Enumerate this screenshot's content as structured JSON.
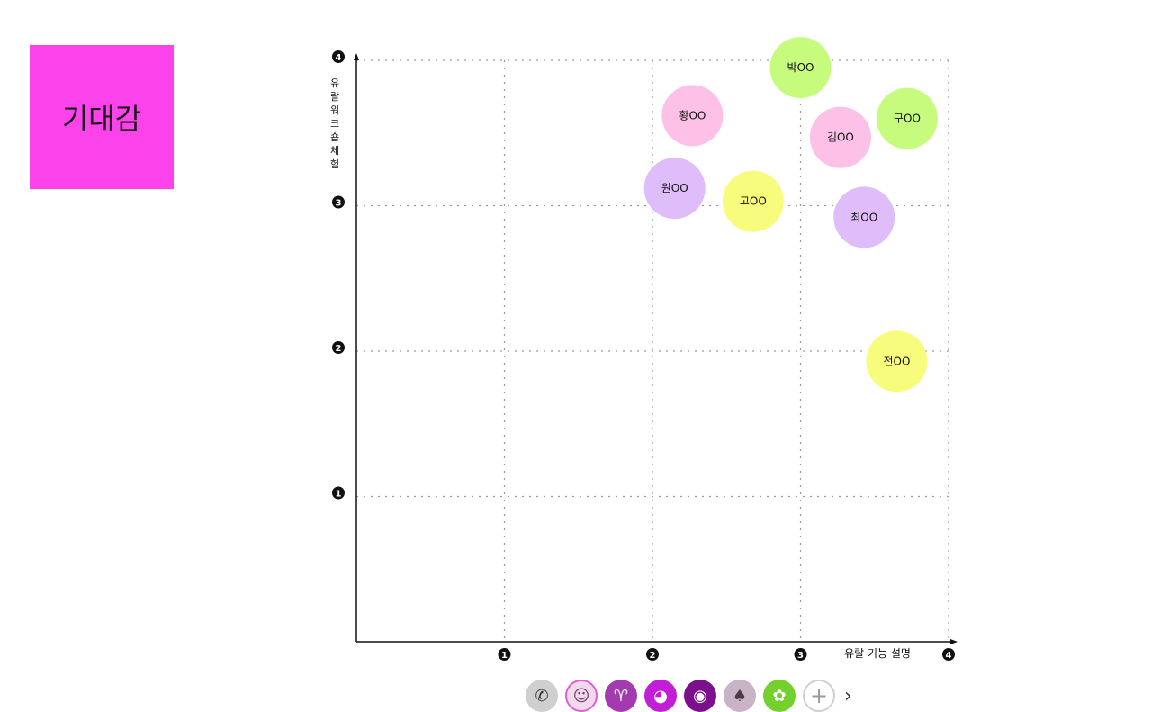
{
  "sticky_note": {
    "label": "기대감",
    "color": "#fc42ea"
  },
  "chart_data": {
    "type": "scatter",
    "title": "기대감",
    "xlabel": "유랄 기능 설명",
    "ylabel": "유랄워크숍체험",
    "xlim": [
      0,
      4
    ],
    "ylim": [
      0,
      4
    ],
    "xticks": [
      1,
      2,
      3,
      4
    ],
    "yticks": [
      1,
      2,
      3,
      4
    ],
    "grid": true,
    "points": [
      {
        "name": "박OO",
        "x": 3.0,
        "y": 3.95,
        "color": "#c6fb7e"
      },
      {
        "name": "황OO",
        "x": 2.27,
        "y": 3.62,
        "color": "#fdc0e6"
      },
      {
        "name": "구OO",
        "x": 3.72,
        "y": 3.6,
        "color": "#c6fb7e"
      },
      {
        "name": "김OO",
        "x": 3.27,
        "y": 3.47,
        "color": "#fdc0e6"
      },
      {
        "name": "원OO",
        "x": 2.15,
        "y": 3.12,
        "color": "#dfbcfa"
      },
      {
        "name": "고OO",
        "x": 2.68,
        "y": 3.03,
        "color": "#f8fc7c"
      },
      {
        "name": "최OO",
        "x": 3.43,
        "y": 2.92,
        "color": "#dfbcfa"
      },
      {
        "name": "전OO",
        "x": 3.65,
        "y": 1.93,
        "color": "#f8fc7c"
      }
    ]
  },
  "collaborators": [
    {
      "name": "phone-icon",
      "glyph": "📞",
      "color": "#cfcfcf"
    },
    {
      "name": "user-photo",
      "glyph": "☺",
      "color": "#f3d9ee"
    },
    {
      "name": "goat-icon",
      "glyph": "♈",
      "color": "#a33ab0"
    },
    {
      "name": "hippo-icon",
      "glyph": "◕",
      "color": "#c21ed8"
    },
    {
      "name": "panda-icon",
      "glyph": "◉",
      "color": "#7c108c"
    },
    {
      "name": "elephant-icon",
      "glyph": "♠",
      "color": "#c8b4c6"
    },
    {
      "name": "ladybug-icon",
      "glyph": "✿",
      "color": "#74d02c"
    },
    {
      "name": "add-icon",
      "glyph": "+",
      "color": "#ffffff"
    },
    {
      "name": "chevron-right-icon",
      "glyph": "›",
      "color": "#ffffff"
    }
  ]
}
